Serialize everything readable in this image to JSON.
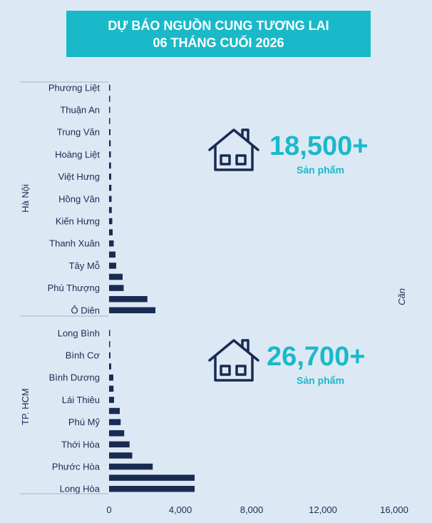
{
  "title": {
    "line1": "DỰ BÁO NGUỒN CUNG TƯƠNG LAI",
    "line2": "06 THÁNG CUỐI 2026"
  },
  "stats": [
    {
      "value": "18,500+",
      "unit": "Sản phẩm",
      "icon": "house-icon"
    },
    {
      "value": "26,700+",
      "unit": "Sản phẩm",
      "icon": "house-icon"
    }
  ],
  "colors": {
    "bar": "#1a2b52",
    "accent": "#1ab9c9",
    "background": "#dce9f5",
    "text": "#1a2b52"
  },
  "chart_data": {
    "type": "bar",
    "orientation": "horizontal",
    "xlabel": "",
    "ylabel": "Căn",
    "xlim": [
      0,
      16000
    ],
    "xticks": [
      "0",
      "4,000",
      "8,000",
      "12,000",
      "16,000"
    ],
    "groups": [
      {
        "name": "Hà Nội",
        "categories": [
          "Phương Liệt",
          "",
          "Thuận An",
          "",
          "Trung Văn",
          "",
          "Hoàng Liệt",
          "",
          "Việt Hưng",
          "",
          "Hồng Vân",
          "",
          "Kiến Hưng",
          "",
          "Thanh Xuân",
          "",
          "Tây Mỗ",
          "",
          "Phú Thượng",
          "",
          "Ô Diên"
        ],
        "values": [
          20,
          30,
          40,
          60,
          80,
          90,
          100,
          110,
          120,
          130,
          140,
          150,
          180,
          200,
          260,
          360,
          400,
          760,
          820,
          2150,
          2600
        ]
      },
      {
        "name": "TP. HCM",
        "categories": [
          "Long Bình",
          "",
          "Bình Cơ",
          "",
          "Bình Dương",
          "",
          "Lái Thiêu",
          "",
          "Phú Mỹ",
          "",
          "Thới Hòa",
          "",
          "Phước Hòa",
          "",
          "Long Hòa"
        ],
        "values": [
          20,
          50,
          80,
          120,
          240,
          250,
          280,
          600,
          650,
          850,
          1150,
          1300,
          2450,
          4800,
          4800
        ]
      }
    ]
  }
}
